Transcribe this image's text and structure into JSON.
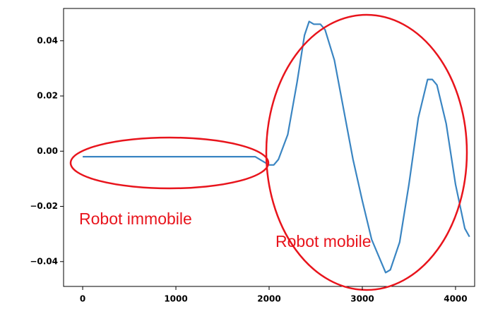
{
  "chart_data": {
    "type": "line",
    "x": [
      0,
      500,
      1000,
      1500,
      1850,
      1950,
      2000,
      2050,
      2100,
      2200,
      2300,
      2380,
      2430,
      2480,
      2550,
      2600,
      2700,
      2800,
      2900,
      3000,
      3100,
      3200,
      3250,
      3300,
      3400,
      3500,
      3600,
      3700,
      3750,
      3800,
      3900,
      4000,
      4100,
      4150
    ],
    "values": [
      -0.002,
      -0.002,
      -0.002,
      -0.002,
      -0.002,
      -0.004,
      -0.005,
      -0.005,
      -0.003,
      0.006,
      0.025,
      0.042,
      0.047,
      0.046,
      0.046,
      0.044,
      0.033,
      0.015,
      -0.003,
      -0.018,
      -0.032,
      -0.04,
      -0.044,
      -0.043,
      -0.033,
      -0.012,
      0.012,
      0.026,
      0.026,
      0.024,
      0.01,
      -0.012,
      -0.028,
      -0.031
    ],
    "color": "#3a85c2",
    "xlim": [
      -205,
      4205
    ],
    "xticks": [
      0,
      1000,
      2000,
      3000,
      4000
    ],
    "ylim": [
      -0.049,
      0.0517
    ],
    "yticks": [
      {
        "value": -0.04,
        "label": "−0.04"
      },
      {
        "value": -0.02,
        "label": "−0.02"
      },
      {
        "value": 0,
        "label": "0.00"
      },
      0.02,
      0.04
    ],
    "annotations": [
      "Robot immobile",
      "Robot mobile"
    ]
  }
}
